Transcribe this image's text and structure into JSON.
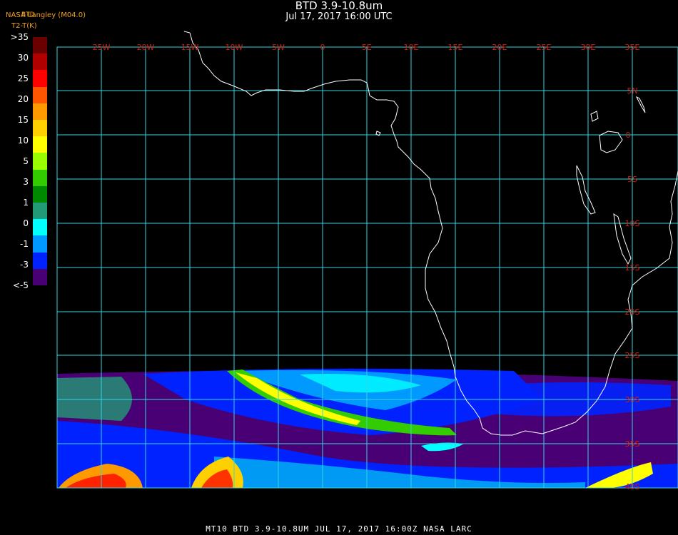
{
  "header": {
    "title": "BTD 3.9-10.8um",
    "subtitle": "Jul 17, 2017 16:00 UTC",
    "credit": "NASA Langley (M04.0)",
    "colorbar_title": "T2-T(K)",
    "colorbar_sub": "BTD"
  },
  "colorbar": {
    "labels": [
      ">35",
      "30",
      "25",
      "20",
      "15",
      "10",
      "5",
      "3",
      "1",
      "0",
      "-1",
      "-3",
      "<-5"
    ],
    "colors": [
      "#6b0000",
      "#b00000",
      "#ff0000",
      "#ff5500",
      "#ff9900",
      "#ffd000",
      "#ffff00",
      "#99ff00",
      "#33cc00",
      "#008800",
      "#229977",
      "#00ffff",
      "#0099ff",
      "#0022ff",
      "#4a0075"
    ]
  },
  "map": {
    "lon_labels": [
      "25W",
      "20W",
      "15W",
      "10W",
      "5W",
      "0",
      "5E",
      "10E",
      "15E",
      "20E",
      "25E",
      "30E",
      "35E"
    ],
    "lat_labels": [
      "5N",
      "0",
      "5S",
      "10S",
      "15S",
      "20S",
      "25S",
      "30S",
      "35S",
      "40S"
    ],
    "grid_color": "#33d6e0",
    "label_color": "#d02010",
    "coast_color": "#ffffff"
  },
  "footer": {
    "text": "MT10   BTD 3.9-10.8UM   JUL 17, 2017 16:00Z   NASA LARC"
  }
}
